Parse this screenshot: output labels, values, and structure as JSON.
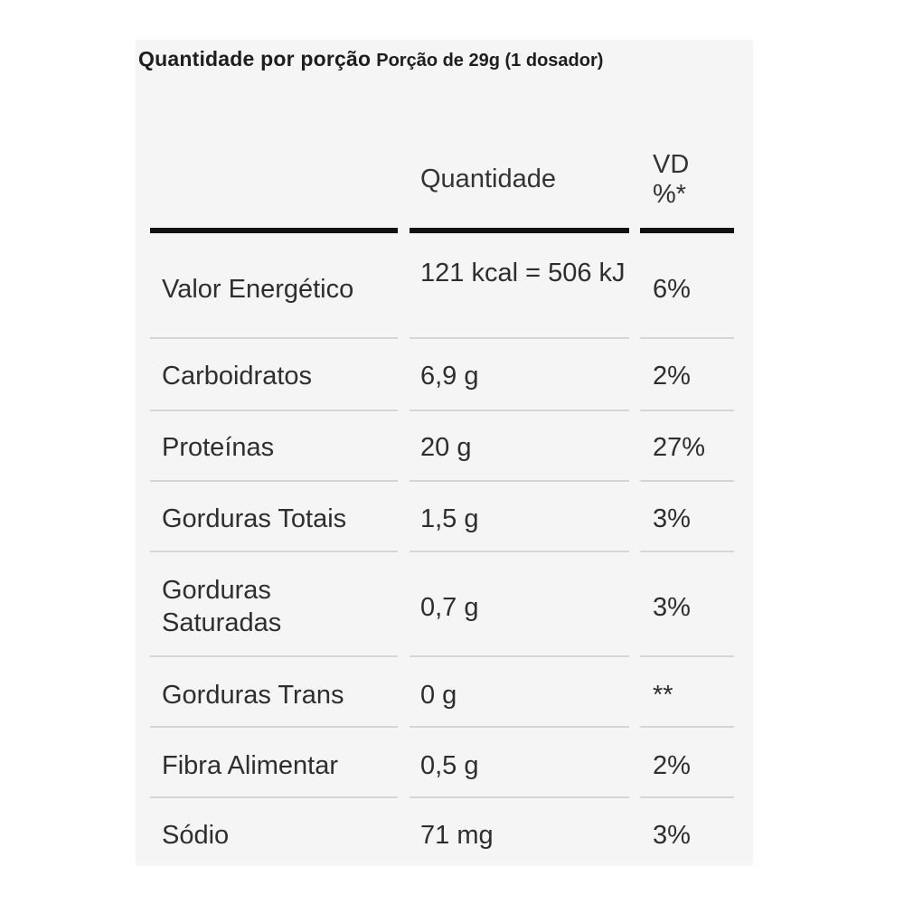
{
  "header": {
    "title": "Quantidade por porção",
    "serving": "Porção de 29g (1 dosador)"
  },
  "table": {
    "columns": [
      "",
      "Quantidade",
      "VD %*"
    ],
    "rows": [
      {
        "nutrient": "Valor Energético",
        "amount": "121 kcal = 506 kJ",
        "dv": "6%"
      },
      {
        "nutrient": "Carboidratos",
        "amount": "6,9 g",
        "dv": "2%"
      },
      {
        "nutrient": "Proteínas",
        "amount": "20 g",
        "dv": "27%"
      },
      {
        "nutrient": "Gorduras Totais",
        "amount": "1,5 g",
        "dv": "3%"
      },
      {
        "nutrient": "Gorduras Saturadas",
        "amount": "0,7 g",
        "dv": "3%"
      },
      {
        "nutrient": "Gorduras Trans",
        "amount": "0 g",
        "dv": "**"
      },
      {
        "nutrient": "Fibra Alimentar",
        "amount": "0,5 g",
        "dv": "2%"
      },
      {
        "nutrient": "Sódio",
        "amount": "71 mg",
        "dv": "3%"
      }
    ]
  },
  "colors": {
    "panel_background": "#f5f5f5",
    "text": "#2e2e2e",
    "header_rule": "#111111",
    "row_divider": "#d6d6d6"
  }
}
